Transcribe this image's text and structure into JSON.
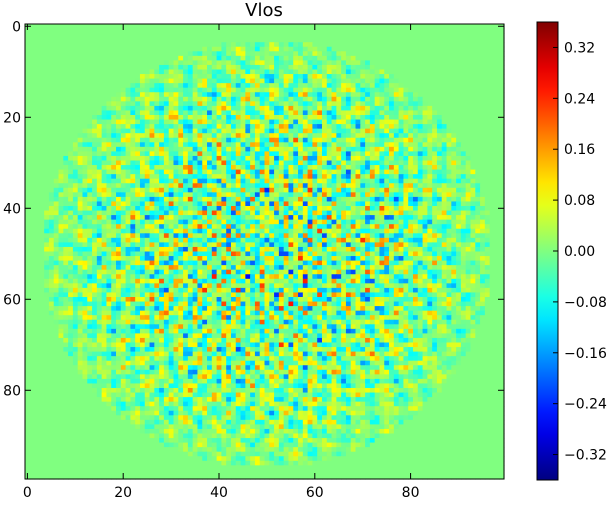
{
  "chart_data": {
    "type": "heatmap",
    "title": "Vlos",
    "xlabel": "",
    "ylabel": "",
    "x_ticks": [
      0,
      20,
      40,
      60,
      80
    ],
    "x_tick_labels": [
      "0",
      "20",
      "40",
      "60",
      "80"
    ],
    "y_ticks": [
      0,
      20,
      40,
      60,
      80
    ],
    "y_tick_labels": [
      "0",
      "20",
      "40",
      "60",
      "80"
    ],
    "xlim": [
      -0.5,
      99.5
    ],
    "ylim": [
      99.5,
      -0.5
    ],
    "grid_shape": [
      100,
      100
    ],
    "colormap": "jet",
    "colorbar": {
      "vmin": -0.36,
      "vmax": 0.36,
      "ticks": [
        0.32,
        0.24,
        0.16,
        0.08,
        0.0,
        -0.08,
        -0.16,
        -0.24,
        -0.32
      ],
      "tick_labels": [
        "0.32",
        "0.24",
        "0.16",
        "0.08",
        "0.00",
        "−0.08",
        "−0.16",
        "−0.24",
        "−0.32"
      ]
    },
    "field_description": {
      "background_value": 0.0,
      "pattern": "radial spoke pattern of alternating positive/negative values centered near (50, 50) with radius about 47",
      "center": [
        50,
        50
      ],
      "radius": 47,
      "spokes": 36
    }
  }
}
